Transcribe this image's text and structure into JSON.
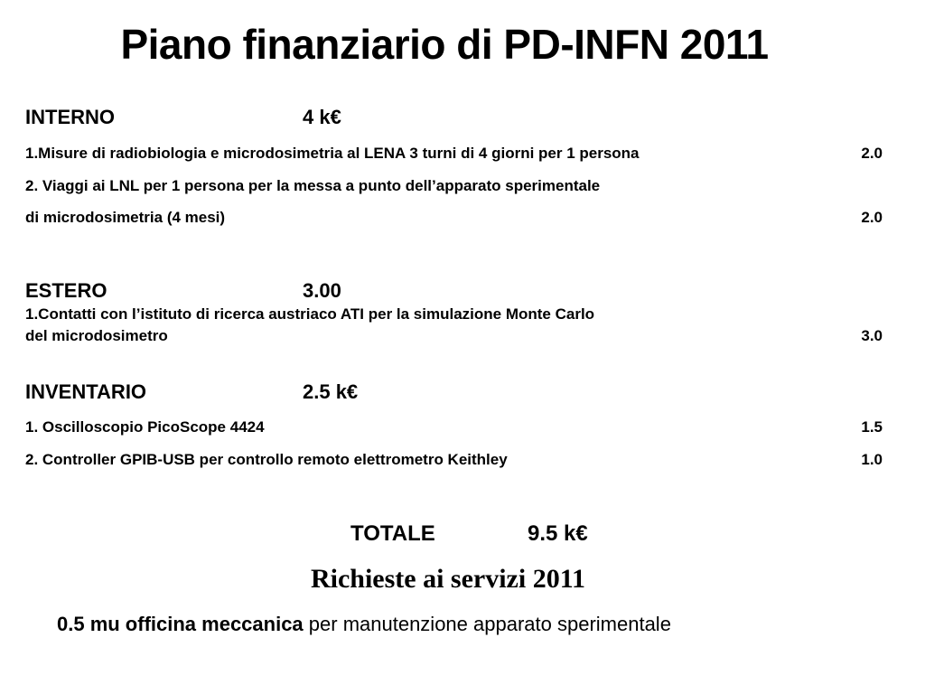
{
  "title": "Piano finanziario di PD-INFN 2011",
  "interno": {
    "label": "INTERNO",
    "amount": "4 k€",
    "items": [
      {
        "text": "1.Misure di radiobiologia e microdosimetria al LENA 3 turni di 4 giorni per 1 persona",
        "value": "2.0"
      },
      {
        "text": "2. Viaggi ai LNL per 1 persona per la messa a punto dell’apparato sperimentale",
        "text2": "di microdosimetria (4 mesi)",
        "value": "2.0"
      }
    ]
  },
  "estero": {
    "label": "ESTERO",
    "amount": "3.00",
    "items": [
      {
        "text": "1.Contatti con l’istituto di ricerca austriaco ATI per la simulazione Monte Carlo",
        "text2": "del microdosimetro",
        "value": "3.0"
      }
    ]
  },
  "inventario": {
    "label": "INVENTARIO",
    "amount": "2.5 k€",
    "items": [
      {
        "text": "1. Oscilloscopio PicoScope 4424",
        "value": "1.5"
      },
      {
        "text": "2. Controller GPIB-USB per controllo remoto elettrometro Keithley",
        "value": "1.0"
      }
    ]
  },
  "totale": {
    "label": "TOTALE",
    "amount": "9.5 k€"
  },
  "services": {
    "title": "Richieste ai servizi 2011",
    "bold_text": "0.5 mu officina meccanica",
    "normal_text": " per manutenzione apparato sperimentale"
  }
}
